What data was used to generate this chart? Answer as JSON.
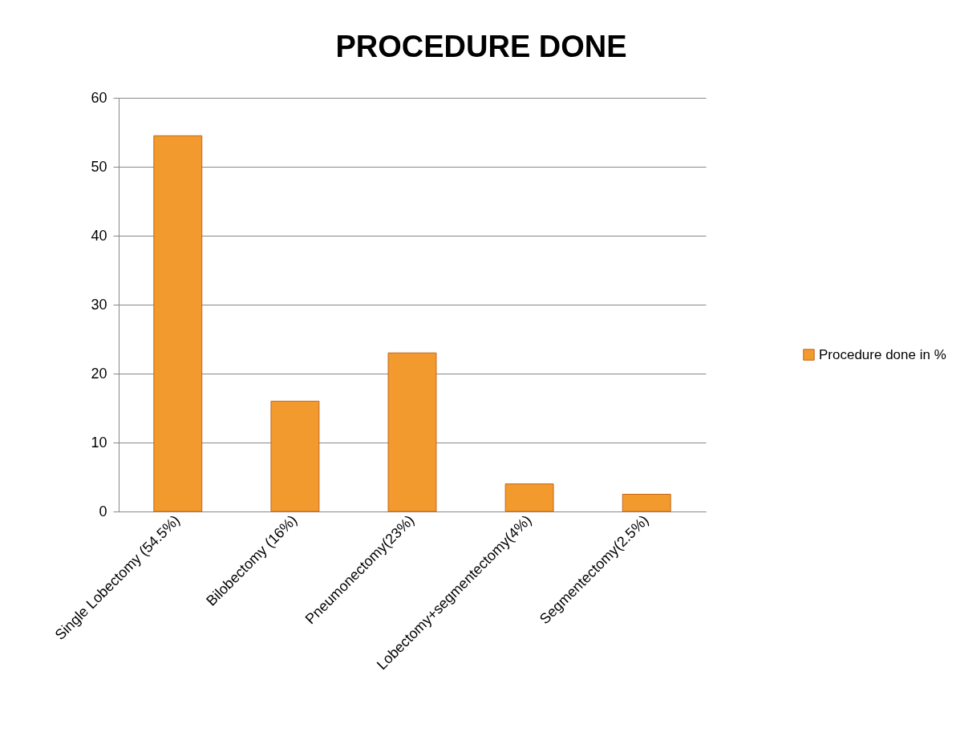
{
  "chart_data": {
    "type": "bar",
    "title": "PROCEDURE DONE",
    "categories": [
      "Single Lobectomy (54.5%)",
      "Bilobectomy (16%)",
      "Pneumonectomy(23%)",
      "Lobectomy+segmentectomy(4%)",
      "Segmentectomy(2.5%)"
    ],
    "series": [
      {
        "name": "Procedure done in %",
        "color": "#f39a2e",
        "values": [
          54.5,
          16,
          23,
          4,
          2.5
        ]
      }
    ],
    "ylim": [
      0,
      60
    ],
    "yticks": [
      0,
      10,
      20,
      30,
      40,
      50,
      60
    ],
    "grid": "y",
    "legend": "right"
  }
}
